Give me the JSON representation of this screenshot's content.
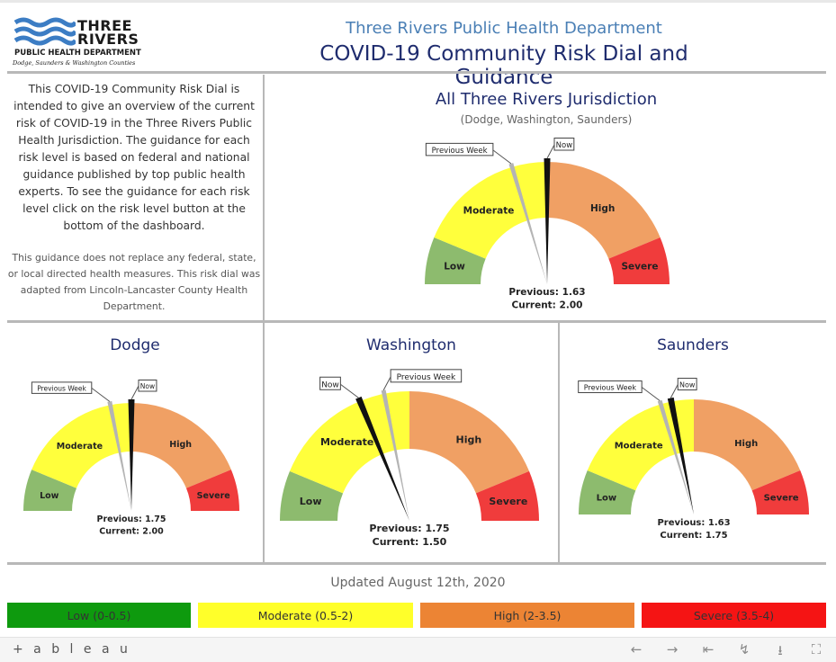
{
  "header": {
    "logo": {
      "line1": "THREE",
      "line2": "RIVERS",
      "line3": "PUBLIC HEALTH DEPARTMENT",
      "line4": "Dodge, Saunders & Washington Counties"
    },
    "department": "Three Rivers Public Health Department",
    "title": "COVID-19 Community Risk Dial and Guidance"
  },
  "intro": {
    "main": "This COVID-19 Community Risk Dial is intended to give an overview of the current risk of COVID-19 in the Three Rivers Public Health Jurisdiction. The guidance for each risk level is based on federal and national guidance published by top public health experts. To see the guidance for each risk level click on the risk level button at the bottom of the dashboard.",
    "note": "This guidance does not replace any federal, state, or local directed health measures. This risk dial was adapted from Lincoln-Lancaster County Health Department."
  },
  "colors": {
    "low": "#8dbb6e",
    "moderate": "#ffff3c",
    "high": "#f0a064",
    "severe": "#f03c3c",
    "needle_now": "#111111",
    "needle_prev": "#b4b4b4"
  },
  "labels": {
    "low": "Low",
    "moderate": "Moderate",
    "high": "High",
    "severe": "Severe",
    "now": "Now",
    "previous_week": "Previous Week",
    "previous_prefix": "Previous: ",
    "current_prefix": "Current: "
  },
  "dials": [
    {
      "id": "all",
      "title": "All Three Rivers Jurisdiction",
      "subtitle": "(Dodge, Washington, Saunders)",
      "previous": 1.63,
      "current": 2.0,
      "previous_text": "1.63",
      "current_text": "2.00"
    },
    {
      "id": "dodge",
      "title": "Dodge",
      "subtitle": "",
      "previous": 1.75,
      "current": 2.0,
      "previous_text": "1.75",
      "current_text": "2.00"
    },
    {
      "id": "washington",
      "title": "Washington",
      "subtitle": "",
      "previous": 1.75,
      "current": 1.5,
      "previous_text": "1.75",
      "current_text": "1.50"
    },
    {
      "id": "saunders",
      "title": "Saunders",
      "subtitle": "",
      "previous": 1.63,
      "current": 1.75,
      "previous_text": "1.63",
      "current_text": "1.75"
    }
  ],
  "updated": "Updated August 12th, 2020",
  "buttons": [
    {
      "label": "Low (0-0.5)",
      "color": "#0e9a0e",
      "text_color": "#333333"
    },
    {
      "label": "Moderate (0.5-2)",
      "color": "#ffff2a",
      "text_color": "#333333"
    },
    {
      "label": "High (2-3.5)",
      "color": "#ec8434",
      "text_color": "#333333"
    },
    {
      "label": "Severe (3.5-4)",
      "color": "#f51414",
      "text_color": "#333333"
    }
  ],
  "toolbar": {
    "brand": "+ a b l e a u",
    "icons": [
      "undo-arrow",
      "redo-arrow",
      "revert-to-start",
      "share",
      "download",
      "full-screen"
    ]
  }
}
